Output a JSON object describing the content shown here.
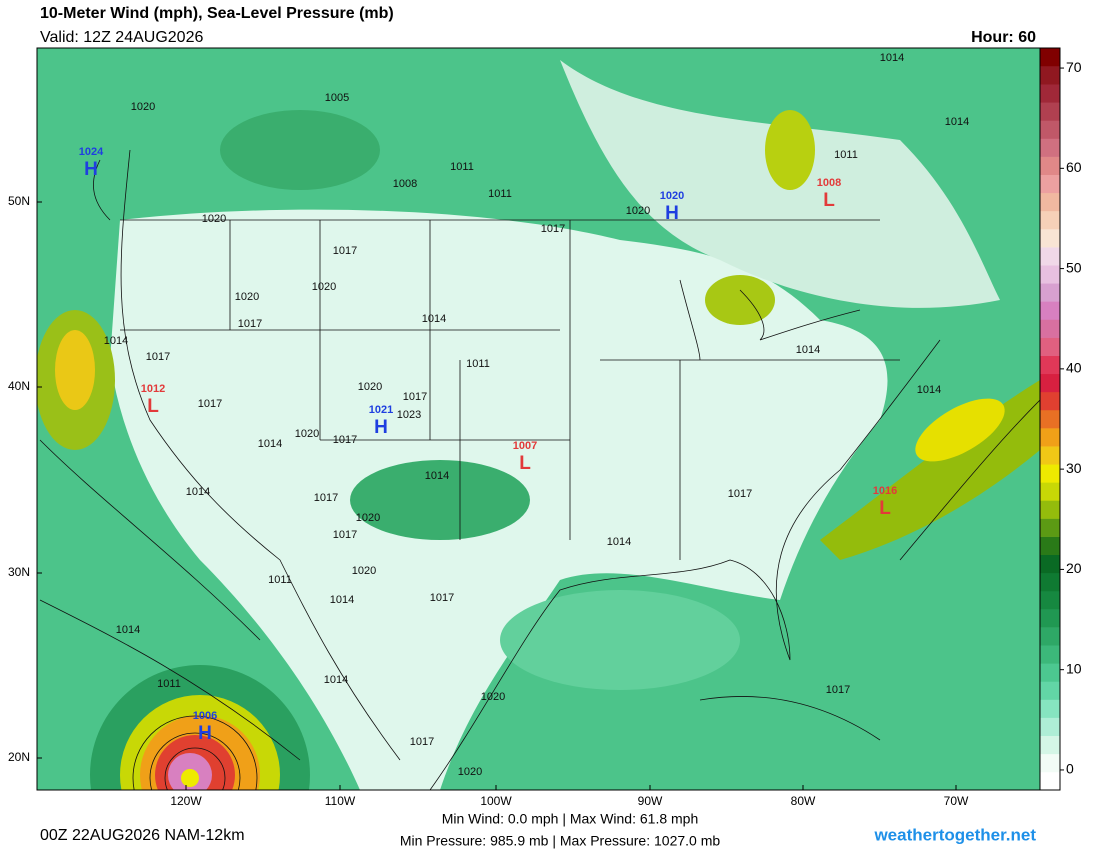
{
  "header": {
    "title": "10-Meter Wind (mph), Sea-Level Pressure (mb)",
    "valid": "Valid: 12Z 24AUG2026",
    "hour": "Hour: 60"
  },
  "colorbar": {
    "range": [
      -2,
      72
    ],
    "ticks": [
      0,
      10,
      20,
      30,
      40,
      50,
      60,
      70
    ],
    "colors": [
      "#ffffff",
      "#f2fcf6",
      "#d4f6e6",
      "#aeeed6",
      "#86e4c0",
      "#62d6a6",
      "#4cc890",
      "#3cb87a",
      "#2ea866",
      "#209852",
      "#168840",
      "#0f7a32",
      "#0a6a24",
      "#2a7a18",
      "#5c9a14",
      "#94bc0c",
      "#c8d806",
      "#eeea00",
      "#f0c816",
      "#f0a018",
      "#e87024",
      "#e04030",
      "#d82040",
      "#e03858",
      "#e06080",
      "#d870a0",
      "#d880c0",
      "#d8a0d0",
      "#e8c0e0",
      "#f0d8e8",
      "#f8e4d4",
      "#f6d0b8",
      "#f0b8a0",
      "#eca0a0",
      "#e08888",
      "#d07080",
      "#c05868",
      "#b04050",
      "#a02838",
      "#901820",
      "#800000"
    ]
  },
  "map": {
    "latitudes": [
      "50N",
      "40N",
      "30N",
      "20N"
    ],
    "longitudes": [
      "120W",
      "110W",
      "100W",
      "90W",
      "80W",
      "70W"
    ],
    "isobar_labels": [
      1020,
      1005,
      1008,
      1011,
      1011,
      1020,
      1017,
      1020,
      1020,
      1017,
      1014,
      1017,
      1020,
      1014,
      1014,
      1011,
      1014,
      1017,
      1017,
      1011,
      1020,
      1017,
      1023,
      1020,
      1017,
      1014,
      1014,
      1014,
      1017,
      1020,
      1017,
      1017,
      1014,
      1020,
      1014,
      1017,
      1011,
      1014,
      1011,
      1014,
      1020,
      1017,
      1020,
      1014,
      1014,
      1017
    ],
    "high_color": "#1f3fe0",
    "low_color": "#e23a3a",
    "centers": [
      {
        "letter": "H",
        "value": 1024
      },
      {
        "letter": "H",
        "value": 1020
      },
      {
        "letter": "L",
        "value": 1008
      },
      {
        "letter": "L",
        "value": 1012
      },
      {
        "letter": "H",
        "value": 1021
      },
      {
        "letter": "L",
        "value": 1007
      },
      {
        "letter": "L",
        "value": 1016
      },
      {
        "letter": "H",
        "value": 1006
      }
    ]
  },
  "footer": {
    "run": "00Z 22AUG2026 NAM-12km",
    "wind": "Min Wind:  0.0 mph | Max Wind: 61.8 mph",
    "pressure": "Min Pressure: 985.9 mb | Max Pressure: 1027.0 mb",
    "site": "weathertogether.net"
  }
}
